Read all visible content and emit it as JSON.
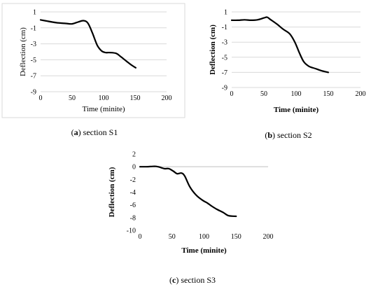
{
  "chart_data": [
    {
      "type": "line",
      "caption_letter": "a",
      "caption_text": "section S1",
      "xlabel": "Time (minite)",
      "ylabel": "Deflection (cm)",
      "xlim": [
        0,
        200
      ],
      "ylim": [
        -9,
        1
      ],
      "xticks": [
        0,
        50,
        100,
        150,
        200
      ],
      "yticks": [
        1,
        -1,
        -3,
        -5,
        -7,
        -9
      ],
      "grid": true,
      "labels_bold": false,
      "series": [
        {
          "x": [
            0,
            10,
            25,
            40,
            50,
            60,
            68,
            75,
            82,
            90,
            97,
            103,
            110,
            120,
            127,
            135,
            145,
            151
          ],
          "y": [
            0,
            -0.15,
            -0.35,
            -0.45,
            -0.5,
            -0.25,
            -0.1,
            -0.4,
            -1.6,
            -3.2,
            -3.9,
            -4.1,
            -4.1,
            -4.2,
            -4.6,
            -5.1,
            -5.7,
            -6.0
          ]
        }
      ]
    },
    {
      "type": "line",
      "caption_letter": "b",
      "caption_text": "section S2",
      "xlabel": "Time (minite)",
      "ylabel": "Deflection (cm)",
      "xlim": [
        0,
        200
      ],
      "ylim": [
        -9,
        1
      ],
      "xticks": [
        0,
        50,
        100,
        150,
        200
      ],
      "yticks": [
        1,
        -1,
        -3,
        -5,
        -7,
        -9
      ],
      "grid": true,
      "labels_bold": true,
      "series": [
        {
          "x": [
            0,
            10,
            20,
            30,
            40,
            50,
            55,
            60,
            70,
            80,
            90,
            98,
            105,
            112,
            120,
            130,
            140,
            150
          ],
          "y": [
            -0.1,
            -0.1,
            -0.05,
            -0.1,
            -0.05,
            0.2,
            0.3,
            0.0,
            -0.6,
            -1.3,
            -1.9,
            -3.0,
            -4.4,
            -5.6,
            -6.2,
            -6.5,
            -6.8,
            -7.0
          ]
        }
      ]
    },
    {
      "type": "line",
      "caption_letter": "c",
      "caption_text": "section S3",
      "xlabel": "Time (minite)",
      "ylabel": "Deflection (cm)",
      "xlim": [
        0,
        200
      ],
      "ylim": [
        -10,
        2
      ],
      "xticks": [
        0,
        50,
        100,
        150,
        200
      ],
      "yticks": [
        2,
        0,
        -2,
        -4,
        -6,
        -8,
        -10
      ],
      "grid": false,
      "labels_bold": true,
      "series": [
        {
          "x": [
            0,
            10,
            20,
            25,
            30,
            38,
            45,
            52,
            58,
            65,
            70,
            78,
            88,
            98,
            105,
            112,
            120,
            130,
            138,
            150
          ],
          "y": [
            0,
            0,
            0.05,
            0.05,
            -0.05,
            -0.3,
            -0.3,
            -0.7,
            -1.1,
            -1.0,
            -1.5,
            -3.2,
            -4.5,
            -5.3,
            -5.7,
            -6.2,
            -6.7,
            -7.2,
            -7.7,
            -7.8
          ]
        }
      ]
    }
  ]
}
